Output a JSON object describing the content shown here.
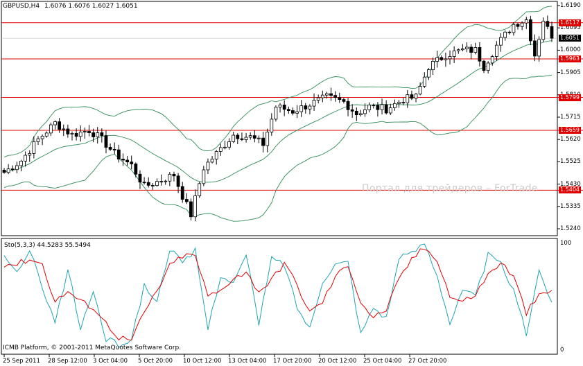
{
  "window": {
    "title": "GBPUSD,H4",
    "ohlc": "1.6076 1.6076 1.6027 1.6051"
  },
  "indicator": {
    "label": "Sto(5,3,3) 44.5283 55.5494",
    "scale_top": "100",
    "scale_bottom": "0"
  },
  "watermark": "Портал для трейдеров – ForTrade",
  "copyright": "ICMB Platform, © 2001-2011 MetaQuotes Software Corp.",
  "price_axis": [
    "1.6190",
    "1.6095",
    "1.6000",
    "1.5905",
    "1.5810",
    "1.5715",
    "1.5620",
    "1.5525",
    "1.5430",
    "1.5335",
    "1.5240"
  ],
  "level_tags": [
    "1.6117",
    "1.5963",
    "1.5799",
    "1.5659",
    "1.5404"
  ],
  "current_price_tag": "1.6051",
  "time_axis": [
    "25 Sep 2011",
    "28 Sep 12:00",
    "3 Oct 04:00",
    "5 Oct 20:00",
    "10 Oct 12:00",
    "13 Oct 04:00",
    "17 Oct 20:00",
    "20 Oct 12:00",
    "25 Oct 04:00",
    "27 Oct 20:00"
  ],
  "colors": {
    "background": "#ffffff",
    "level_lines": "#e00000",
    "bands": "#2e8b57",
    "stoch_main": "#1fa3b3",
    "stoch_signal": "#e00000",
    "candles": "#000000"
  },
  "chart_data": {
    "type": "candlestick",
    "symbol": "GBPUSD",
    "timeframe": "H4",
    "last_ohlc": {
      "open": 1.6076,
      "high": 1.6076,
      "low": 1.6027,
      "close": 1.6051
    },
    "ylim": [
      1.524,
      1.619
    ],
    "horizontal_levels": [
      1.6117,
      1.5963,
      1.5799,
      1.5659,
      1.5404
    ],
    "price_path": [
      [
        0,
        1.548
      ],
      [
        4,
        1.553
      ],
      [
        8,
        1.562
      ],
      [
        12,
        1.569
      ],
      [
        16,
        1.564
      ],
      [
        20,
        1.566
      ],
      [
        23,
        1.562
      ],
      [
        26,
        1.556
      ],
      [
        30,
        1.551
      ],
      [
        33,
        1.542
      ],
      [
        36,
        1.544
      ],
      [
        40,
        1.547
      ],
      [
        42,
        1.538
      ],
      [
        44,
        1.53
      ],
      [
        47,
        1.55
      ],
      [
        50,
        1.556
      ],
      [
        54,
        1.564
      ],
      [
        58,
        1.563
      ],
      [
        61,
        1.56
      ],
      [
        64,
        1.576
      ],
      [
        68,
        1.574
      ],
      [
        72,
        1.577
      ],
      [
        76,
        1.58
      ],
      [
        80,
        1.578
      ],
      [
        83,
        1.573
      ],
      [
        86,
        1.576
      ],
      [
        90,
        1.575
      ],
      [
        94,
        1.579
      ],
      [
        97,
        1.58
      ],
      [
        100,
        1.593
      ],
      [
        104,
        1.598
      ],
      [
        108,
        1.6
      ],
      [
        111,
        1.6
      ],
      [
        113,
        1.593
      ],
      [
        116,
        1.602
      ],
      [
        120,
        1.611
      ],
      [
        123,
        1.613
      ],
      [
        125,
        1.598
      ],
      [
        127,
        1.613
      ],
      [
        129,
        1.6051
      ]
    ],
    "stochastic": {
      "name": "Sto(5,3,3)",
      "main_last": 44.5283,
      "signal_last": 55.5494,
      "ylim": [
        0,
        100
      ],
      "main_path": [
        [
          0,
          85
        ],
        [
          3,
          72
        ],
        [
          6,
          92
        ],
        [
          9,
          60
        ],
        [
          12,
          25
        ],
        [
          15,
          75
        ],
        [
          18,
          20
        ],
        [
          21,
          55
        ],
        [
          24,
          10
        ],
        [
          27,
          5
        ],
        [
          30,
          10
        ],
        [
          33,
          60
        ],
        [
          36,
          45
        ],
        [
          39,
          95
        ],
        [
          42,
          80
        ],
        [
          45,
          92
        ],
        [
          48,
          20
        ],
        [
          51,
          70
        ],
        [
          54,
          62
        ],
        [
          57,
          88
        ],
        [
          60,
          25
        ],
        [
          63,
          85
        ],
        [
          66,
          80
        ],
        [
          69,
          40
        ],
        [
          72,
          20
        ],
        [
          75,
          65
        ],
        [
          78,
          80
        ],
        [
          81,
          82
        ],
        [
          84,
          15
        ],
        [
          87,
          40
        ],
        [
          90,
          30
        ],
        [
          93,
          85
        ],
        [
          96,
          90
        ],
        [
          99,
          100
        ],
        [
          102,
          70
        ],
        [
          105,
          25
        ],
        [
          108,
          55
        ],
        [
          111,
          50
        ],
        [
          114,
          88
        ],
        [
          117,
          80
        ],
        [
          120,
          55
        ],
        [
          123,
          15
        ],
        [
          126,
          75
        ],
        [
          129,
          44.5
        ]
      ],
      "signal_path": [
        [
          0,
          80
        ],
        [
          3,
          80
        ],
        [
          6,
          85
        ],
        [
          9,
          80
        ],
        [
          12,
          45
        ],
        [
          15,
          55
        ],
        [
          18,
          45
        ],
        [
          21,
          40
        ],
        [
          24,
          25
        ],
        [
          27,
          12
        ],
        [
          30,
          9
        ],
        [
          33,
          35
        ],
        [
          36,
          55
        ],
        [
          39,
          78
        ],
        [
          42,
          88
        ],
        [
          45,
          88
        ],
        [
          48,
          50
        ],
        [
          51,
          55
        ],
        [
          54,
          68
        ],
        [
          57,
          72
        ],
        [
          60,
          55
        ],
        [
          63,
          65
        ],
        [
          66,
          82
        ],
        [
          69,
          60
        ],
        [
          72,
          35
        ],
        [
          75,
          45
        ],
        [
          78,
          68
        ],
        [
          81,
          80
        ],
        [
          84,
          45
        ],
        [
          87,
          30
        ],
        [
          90,
          38
        ],
        [
          93,
          65
        ],
        [
          96,
          85
        ],
        [
          99,
          95
        ],
        [
          102,
          85
        ],
        [
          105,
          50
        ],
        [
          108,
          45
        ],
        [
          111,
          52
        ],
        [
          114,
          70
        ],
        [
          117,
          82
        ],
        [
          120,
          68
        ],
        [
          123,
          35
        ],
        [
          126,
          50
        ],
        [
          129,
          55.5
        ]
      ]
    },
    "xlabels": [
      "25 Sep 2011",
      "28 Sep 12:00",
      "3 Oct 04:00",
      "5 Oct 20:00",
      "10 Oct 12:00",
      "13 Oct 04:00",
      "17 Oct 20:00",
      "20 Oct 12:00",
      "25 Oct 04:00",
      "27 Oct 20:00"
    ]
  }
}
